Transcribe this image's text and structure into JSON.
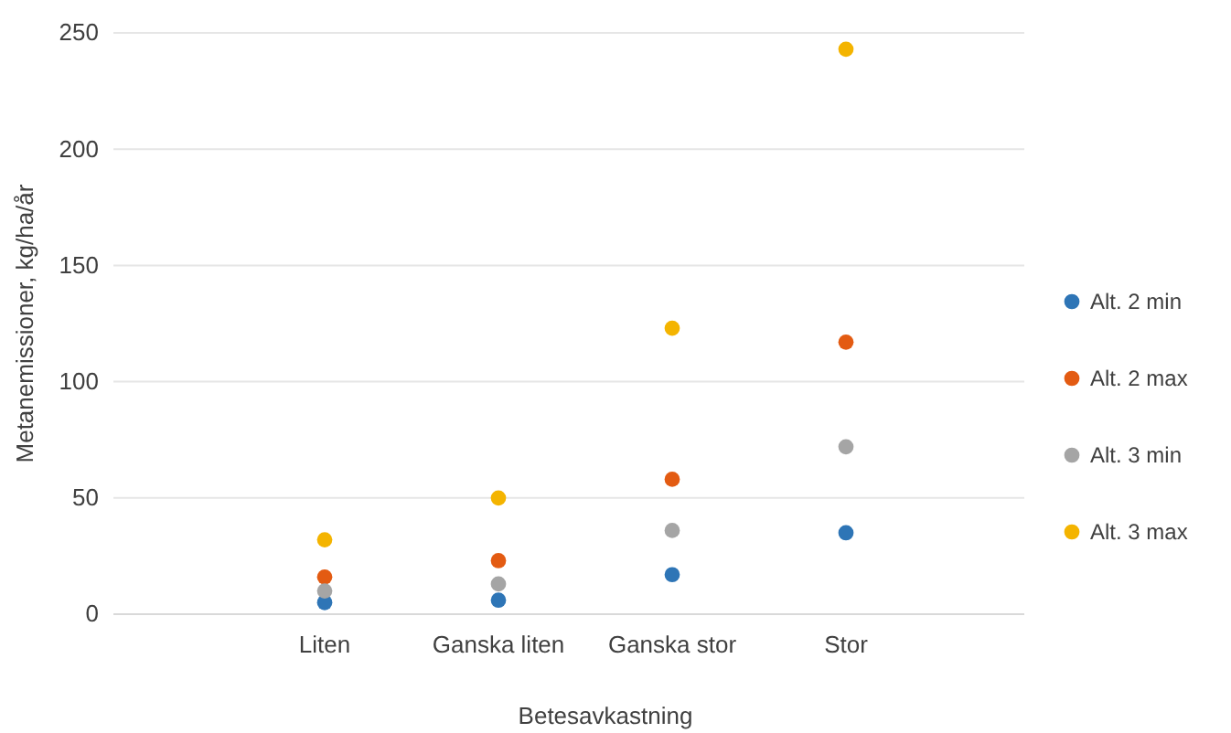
{
  "chart_data": {
    "type": "scatter",
    "xlabel": "Betesavkastning",
    "ylabel": "Metanemissioner, kg/ha/år",
    "categories": [
      "Liten",
      "Ganska liten",
      "Ganska stor",
      "Stor"
    ],
    "series": [
      {
        "name": "Alt. 2 min",
        "color": "#2e75b6",
        "values": [
          5,
          6,
          17,
          35
        ]
      },
      {
        "name": "Alt. 2 max",
        "color": "#e35b12",
        "values": [
          16,
          23,
          58,
          117
        ]
      },
      {
        "name": "Alt. 3 min",
        "color": "#a5a5a5",
        "values": [
          10,
          13,
          36,
          72
        ]
      },
      {
        "name": "Alt. 3 max",
        "color": "#f4b400",
        "values": [
          32,
          50,
          123,
          243
        ]
      }
    ],
    "ylim": [
      0,
      250
    ],
    "yticks": [
      0,
      50,
      100,
      150,
      200,
      250
    ],
    "grid": "y",
    "legend": "right",
    "marker": "circle"
  }
}
